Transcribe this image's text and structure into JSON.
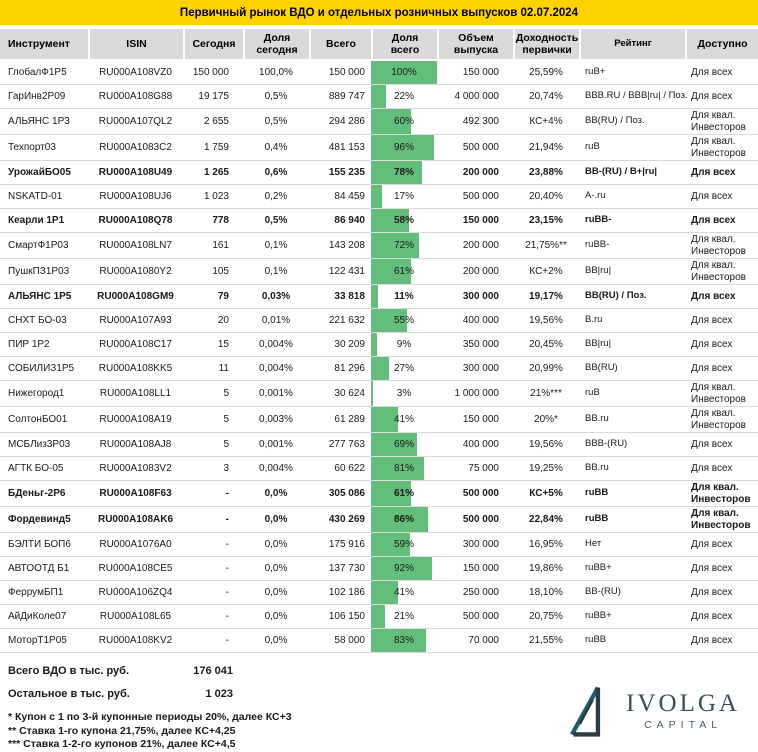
{
  "title": "Первичный рынок ВДО и отдельных розничных выпусков 02.07.2024",
  "colors": {
    "title_bg": "#ffd200",
    "bar_green": "#63be7b",
    "header_bg": "#d9d9d9",
    "logo_teal": "#1d5f6e",
    "logo_dark": "#2e3a45"
  },
  "chart_data": {
    "type": "table",
    "title": "Первичный рынок ВДО и отдельных розничных выпусков 02.07.2024",
    "bar_column": "Доля всего",
    "bar_range": [
      0,
      100
    ],
    "columns": [
      "Инструмент",
      "ISIN",
      "Сегодня",
      "Доля сегодня",
      "Всего",
      "Доля всего",
      "Объем выпуска",
      "Доходность первички",
      "Рейтинг",
      "Доступно"
    ],
    "rows": [
      {
        "name": "ГлобалФ1Р5",
        "isin": "RU000A108VZ0",
        "today": "150 000",
        "share_today": "100,0%",
        "total": "150 000",
        "pct": 100,
        "share_total": "100%",
        "volume": "150 000",
        "yield": "25,59%",
        "rating": "ruB+",
        "access": "Для всех",
        "bold": false
      },
      {
        "name": "ГарИнв2Р09",
        "isin": "RU000A108G88",
        "today": "19 175",
        "share_today": "0,5%",
        "total": "889 747",
        "pct": 22,
        "share_total": "22%",
        "volume": "4 000 000",
        "yield": "20,74%",
        "rating": "BBB.RU / BBB|ru| / Поз.",
        "access": "Для всех",
        "bold": false
      },
      {
        "name": "АЛЬЯНС 1Р3",
        "isin": "RU000A107QL2",
        "today": "2 655",
        "share_today": "0,5%",
        "total": "294 286",
        "pct": 60,
        "share_total": "60%",
        "volume": "492 300",
        "yield": "КС+4%",
        "rating": "BB(RU) / Поз.",
        "access": "Для квал. Инвесторов",
        "bold": false
      },
      {
        "name": "Техпорт03",
        "isin": "RU000A1083C2",
        "today": "1 759",
        "share_today": "0,4%",
        "total": "481 153",
        "pct": 96,
        "share_total": "96%",
        "volume": "500 000",
        "yield": "21,94%",
        "rating": "ruB",
        "access": "Для квал. Инвесторов",
        "bold": false
      },
      {
        "name": "УрожайБО05",
        "isin": "RU000A108U49",
        "today": "1 265",
        "share_today": "0,6%",
        "total": "155 235",
        "pct": 78,
        "share_total": "78%",
        "volume": "200 000",
        "yield": "23,88%",
        "rating": "BB-(RU) / B+|ru|",
        "access": "Для всех",
        "bold": true
      },
      {
        "name": "NSKATD-01",
        "isin": "RU000A108UJ6",
        "today": "1 023",
        "share_today": "0,2%",
        "total": "84 459",
        "pct": 17,
        "share_total": "17%",
        "volume": "500 000",
        "yield": "20,40%",
        "rating": "A-.ru",
        "access": "Для всех",
        "bold": false
      },
      {
        "name": "Кеарли 1Р1",
        "isin": "RU000A108Q78",
        "today": "778",
        "share_today": "0,5%",
        "total": "86 940",
        "pct": 58,
        "share_total": "58%",
        "volume": "150 000",
        "yield": "23,15%",
        "rating": "ruBB-",
        "access": "Для всех",
        "bold": true
      },
      {
        "name": "СмартФ1Р03",
        "isin": "RU000A108LN7",
        "today": "161",
        "share_today": "0,1%",
        "total": "143 208",
        "pct": 72,
        "share_total": "72%",
        "volume": "200 000",
        "yield": "21,75%**",
        "rating": "ruBB-",
        "access": "Для квал. Инвесторов",
        "bold": false
      },
      {
        "name": "ПушкПЗ1Р03",
        "isin": "RU000A1080Y2",
        "today": "105",
        "share_today": "0,1%",
        "total": "122 431",
        "pct": 61,
        "share_total": "61%",
        "volume": "200 000",
        "yield": "КС+2%",
        "rating": "BB|ru|",
        "access": "Для квал. Инвесторов",
        "bold": false
      },
      {
        "name": "АЛЬЯНС 1Р5",
        "isin": "RU000A108GM9",
        "today": "79",
        "share_today": "0,03%",
        "total": "33 818",
        "pct": 11,
        "share_total": "11%",
        "volume": "300 000",
        "yield": "19,17%",
        "rating": "BB(RU) / Поз.",
        "access": "Для всех",
        "bold": true
      },
      {
        "name": "СНХТ БО-03",
        "isin": "RU000A107A93",
        "today": "20",
        "share_today": "0,01%",
        "total": "221 632",
        "pct": 55,
        "share_total": "55%",
        "volume": "400 000",
        "yield": "19,56%",
        "rating": "B.ru",
        "access": "Для всех",
        "bold": false
      },
      {
        "name": "ПИР 1Р2",
        "isin": "RU000A108C17",
        "today": "15",
        "share_today": "0,004%",
        "total": "30 209",
        "pct": 9,
        "share_total": "9%",
        "volume": "350 000",
        "yield": "20,45%",
        "rating": "BB|ru|",
        "access": "Для всех",
        "bold": false
      },
      {
        "name": "СОБИЛИЗ1Р5",
        "isin": "RU000A108KK5",
        "today": "11",
        "share_today": "0,004%",
        "total": "81 296",
        "pct": 27,
        "share_total": "27%",
        "volume": "300 000",
        "yield": "20,99%",
        "rating": "BB(RU)",
        "access": "Для всех",
        "bold": false
      },
      {
        "name": "Нижегород1",
        "isin": "RU000A108LL1",
        "today": "5",
        "share_today": "0,001%",
        "total": "30 624",
        "pct": 3,
        "share_total": "3%",
        "volume": "1 000 000",
        "yield": "21%***",
        "rating": "ruB",
        "access": "Для квал. Инвесторов",
        "bold": false
      },
      {
        "name": "СолтонБО01",
        "isin": "RU000A108A19",
        "today": "5",
        "share_today": "0,003%",
        "total": "61 289",
        "pct": 41,
        "share_total": "41%",
        "volume": "150 000",
        "yield": "20%*",
        "rating": "BB.ru",
        "access": "Для квал. Инвесторов",
        "bold": false
      },
      {
        "name": "МСБЛиз3Р03",
        "isin": "RU000A108AJ8",
        "today": "5",
        "share_today": "0,001%",
        "total": "277 763",
        "pct": 69,
        "share_total": "69%",
        "volume": "400 000",
        "yield": "19,56%",
        "rating": "BBB-(RU)",
        "access": "Для всех",
        "bold": false
      },
      {
        "name": "АГТК БО-05",
        "isin": "RU000A1083V2",
        "today": "3",
        "share_today": "0,004%",
        "total": "60 622",
        "pct": 81,
        "share_total": "81%",
        "volume": "75 000",
        "yield": "19,25%",
        "rating": "BB.ru",
        "access": "Для всех",
        "bold": false
      },
      {
        "name": "БДеньг-2Р6",
        "isin": "RU000A108F63",
        "today": "-",
        "share_today": "0,0%",
        "total": "305 086",
        "pct": 61,
        "share_total": "61%",
        "volume": "500 000",
        "yield": "КС+5%",
        "rating": "ruBB",
        "access": "Для квал. Инвесторов",
        "bold": true
      },
      {
        "name": "Фордевинд5",
        "isin": "RU000A108AK6",
        "today": "-",
        "share_today": "0,0%",
        "total": "430 269",
        "pct": 86,
        "share_total": "86%",
        "volume": "500 000",
        "yield": "22,84%",
        "rating": "ruBB",
        "access": "Для квал. Инвесторов",
        "bold": true
      },
      {
        "name": "БЭЛТИ БОП6",
        "isin": "RU000A1076A0",
        "today": "-",
        "share_today": "0,0%",
        "total": "175 916",
        "pct": 59,
        "share_total": "59%",
        "volume": "300 000",
        "yield": "16,95%",
        "rating": "Нет",
        "access": "Для всех",
        "bold": false
      },
      {
        "name": "АВТООТД Б1",
        "isin": "RU000A108CE5",
        "today": "-",
        "share_today": "0,0%",
        "total": "137 730",
        "pct": 92,
        "share_total": "92%",
        "volume": "150 000",
        "yield": "19,86%",
        "rating": "ruBB+",
        "access": "Для всех",
        "bold": false
      },
      {
        "name": "ФеррумБП1",
        "isin": "RU000A106ZQ4",
        "today": "-",
        "share_today": "0,0%",
        "total": "102 186",
        "pct": 41,
        "share_total": "41%",
        "volume": "250 000",
        "yield": "18,10%",
        "rating": "BB-(RU)",
        "access": "Для всех",
        "bold": false
      },
      {
        "name": "АйДиКоле07",
        "isin": "RU000A108L65",
        "today": "-",
        "share_today": "0,0%",
        "total": "106 150",
        "pct": 21,
        "share_total": "21%",
        "volume": "500 000",
        "yield": "20,75%",
        "rating": "ruBB+",
        "access": "Для всех",
        "bold": false
      },
      {
        "name": "МоторТ1Р05",
        "isin": "RU000A108KV2",
        "today": "-",
        "share_today": "0,0%",
        "total": "58 000",
        "pct": 83,
        "share_total": "83%",
        "volume": "70 000",
        "yield": "21,55%",
        "rating": "ruBB",
        "access": "Для всех",
        "bold": false
      }
    ]
  },
  "totals": [
    {
      "label": "Всего ВДО в тыс. руб.",
      "value": "176 041"
    },
    {
      "label": "Остальное в тыс. руб.",
      "value": "1 023"
    }
  ],
  "footnotes": [
    "* Купон с 1 по 3-й купонные периоды 20%, далее КС+3",
    "** Ставка 1-го купона 21,75%, далее КС+4,25",
    "*** Ставка 1-2-го купонов 21%, далее КС+4,5"
  ],
  "logo": {
    "name": "IVOLGA",
    "sub": "CAPITAL"
  }
}
